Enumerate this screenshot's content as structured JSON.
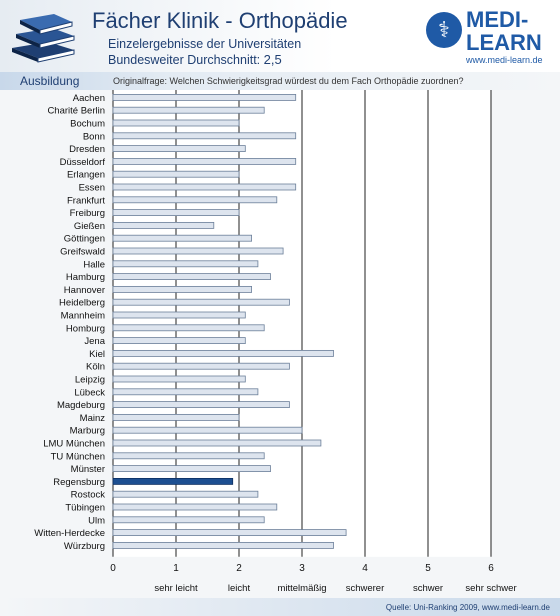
{
  "header": {
    "title": "Fächer Klinik - Orthopädie",
    "subtitle_line1": "Einzelergebnisse der Universitäten",
    "subtitle_line2_prefix": "Bundesweiter Durchschnitt:",
    "subtitle_avg": "2,5",
    "logo_line1": "MEDI-",
    "logo_line2": "LEARN",
    "logo_url": "www.medi-learn.de",
    "section_label": "Ausbildung",
    "question": "Originalfrage: Welchen Schwierigkeitsgrad würdest du dem Fach Orthopädie zuordnen?"
  },
  "footer": {
    "source": "Quelle: Uni-Ranking 2009, www.medi-learn.de"
  },
  "colors": {
    "bar_fill": "#dde4ee",
    "bar_stroke": "#6c7f99",
    "highlight_fill": "#1d4f91",
    "grid": "#222222",
    "title": "#1f3f72"
  },
  "chart_data": {
    "type": "bar",
    "orientation": "horizontal",
    "xlim": [
      0,
      6
    ],
    "xticks": [
      0,
      1,
      2,
      3,
      4,
      5,
      6
    ],
    "tick_labels": [
      "0",
      "1",
      "2",
      "3",
      "4",
      "5",
      "6"
    ],
    "scale_labels": [
      "sehr leicht",
      "leicht",
      "mittelmäßig",
      "schwerer",
      "schwer",
      "sehr schwer"
    ],
    "highlight": "Regensburg",
    "grid": true,
    "categories": [
      "Aachen",
      "Charité Berlin",
      "Bochum",
      "Bonn",
      "Dresden",
      "Düsseldorf",
      "Erlangen",
      "Essen",
      "Frankfurt",
      "Freiburg",
      "Gießen",
      "Göttingen",
      "Greifswald",
      "Halle",
      "Hamburg",
      "Hannover",
      "Heidelberg",
      "Mannheim",
      "Homburg",
      "Jena",
      "Kiel",
      "Köln",
      "Leipzig",
      "Lübeck",
      "Magdeburg",
      "Mainz",
      "Marburg",
      "LMU München",
      "TU München",
      "Münster",
      "Regensburg",
      "Rostock",
      "Tübingen",
      "Ulm",
      "Witten-Herdecke",
      "Würzburg"
    ],
    "values": [
      2.9,
      2.4,
      2.0,
      2.9,
      2.1,
      2.9,
      2.0,
      2.9,
      2.6,
      2.0,
      1.6,
      2.2,
      2.7,
      2.3,
      2.5,
      2.2,
      2.8,
      2.1,
      2.4,
      2.1,
      3.5,
      2.8,
      2.1,
      2.3,
      2.8,
      2.0,
      3.0,
      3.3,
      2.4,
      2.5,
      1.9,
      2.3,
      2.6,
      2.4,
      3.7,
      3.5
    ]
  }
}
